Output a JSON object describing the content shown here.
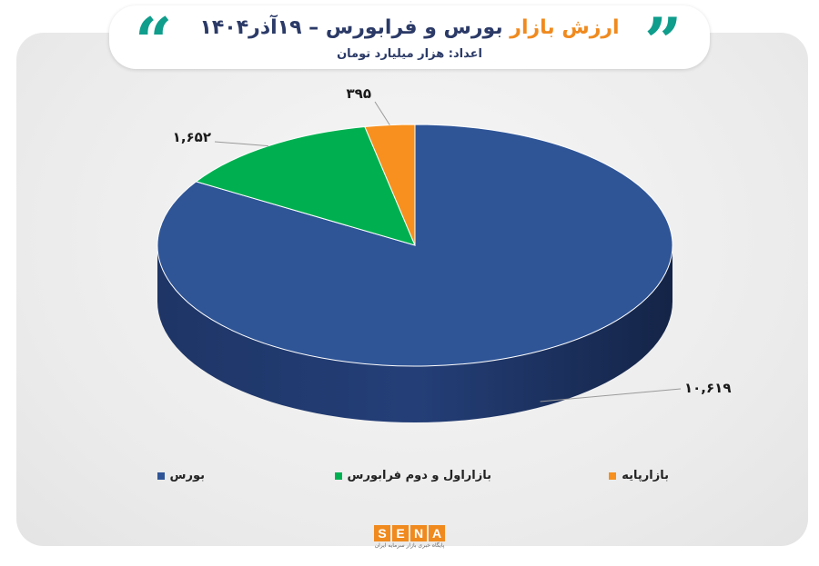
{
  "header": {
    "title_accent": "ارزش بازار",
    "title_rest": " بورس و فرابورس – ۱۹آذر۱۴۰۴",
    "subtitle": "اعداد: هزار میلیارد تومان"
  },
  "chart_data": {
    "type": "pie",
    "title": "ارزش بازار بورس و فرابورس – ۱۹آذر۱۴۰۴",
    "unit": "هزار میلیارد تومان",
    "slices": [
      {
        "name": "بورس",
        "value": 10619,
        "label": "۱۰,۶۱۹",
        "color": "#2f5597"
      },
      {
        "name": "بازاراول و دوم فرابورس",
        "value": 1652,
        "label": "۱,۶۵۲",
        "color": "#00b050"
      },
      {
        "name": "بازارپایه",
        "value": 395,
        "label": "۳۹۵",
        "color": "#f7901e"
      }
    ],
    "legend_position": "bottom"
  },
  "logo": {
    "letters": [
      "S",
      "E",
      "N",
      "A"
    ],
    "tagline": "پایگاه خبری بازار سرمایه ایران"
  }
}
